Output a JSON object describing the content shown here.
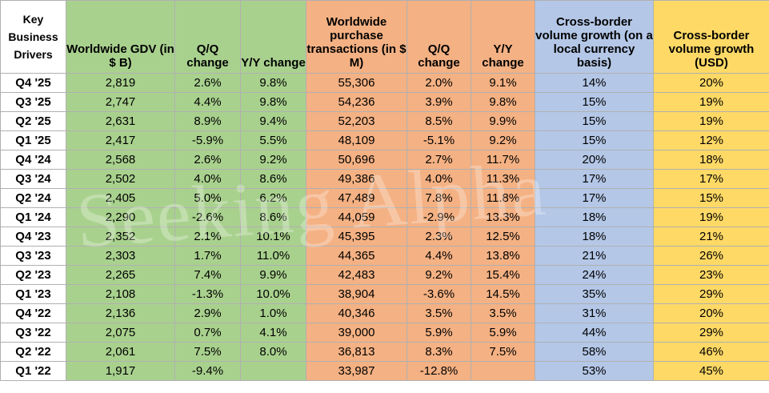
{
  "headers": {
    "key": "Key Business Drivers",
    "gdv": "Worldwide GDV (in $ B)",
    "gdv_qq": "Q/Q change",
    "gdv_yy": "Y/Y change",
    "tx": "Worldwide purchase transactions (in $ M)",
    "tx_qq": "Q/Q change",
    "tx_yy": "Y/Y change",
    "cb_local": "Cross-border volume growth (on a local currency basis)",
    "cb_usd": "Cross-border volume growth (USD)"
  },
  "rows": [
    {
      "q": "Q4 '25",
      "gdv": "2,819",
      "gdv_qq": "2.6%",
      "gdv_yy": "9.8%",
      "tx": "55,306",
      "tx_qq": "2.0%",
      "tx_yy": "9.1%",
      "cb_local": "14%",
      "cb_usd": "20%"
    },
    {
      "q": "Q3 '25",
      "gdv": "2,747",
      "gdv_qq": "4.4%",
      "gdv_yy": "9.8%",
      "tx": "54,236",
      "tx_qq": "3.9%",
      "tx_yy": "9.8%",
      "cb_local": "15%",
      "cb_usd": "19%"
    },
    {
      "q": "Q2 '25",
      "gdv": "2,631",
      "gdv_qq": "8.9%",
      "gdv_yy": "9.4%",
      "tx": "52,203",
      "tx_qq": "8.5%",
      "tx_yy": "9.9%",
      "cb_local": "15%",
      "cb_usd": "19%"
    },
    {
      "q": "Q1 '25",
      "gdv": "2,417",
      "gdv_qq": "-5.9%",
      "gdv_yy": "5.5%",
      "tx": "48,109",
      "tx_qq": "-5.1%",
      "tx_yy": "9.2%",
      "cb_local": "15%",
      "cb_usd": "12%"
    },
    {
      "q": "Q4 '24",
      "gdv": "2,568",
      "gdv_qq": "2.6%",
      "gdv_yy": "9.2%",
      "tx": "50,696",
      "tx_qq": "2.7%",
      "tx_yy": "11.7%",
      "cb_local": "20%",
      "cb_usd": "18%"
    },
    {
      "q": "Q3 '24",
      "gdv": "2,502",
      "gdv_qq": "4.0%",
      "gdv_yy": "8.6%",
      "tx": "49,386",
      "tx_qq": "4.0%",
      "tx_yy": "11.3%",
      "cb_local": "17%",
      "cb_usd": "17%"
    },
    {
      "q": "Q2 '24",
      "gdv": "2,405",
      "gdv_qq": "5.0%",
      "gdv_yy": "6.2%",
      "tx": "47,489",
      "tx_qq": "7.8%",
      "tx_yy": "11.8%",
      "cb_local": "17%",
      "cb_usd": "15%"
    },
    {
      "q": "Q1 '24",
      "gdv": "2,290",
      "gdv_qq": "-2.6%",
      "gdv_yy": "8.6%",
      "tx": "44,059",
      "tx_qq": "-2.9%",
      "tx_yy": "13.3%",
      "cb_local": "18%",
      "cb_usd": "19%"
    },
    {
      "q": "Q4 '23",
      "gdv": "2,352",
      "gdv_qq": "2.1%",
      "gdv_yy": "10.1%",
      "tx": "45,395",
      "tx_qq": "2.3%",
      "tx_yy": "12.5%",
      "cb_local": "18%",
      "cb_usd": "21%"
    },
    {
      "q": "Q3 '23",
      "gdv": "2,303",
      "gdv_qq": "1.7%",
      "gdv_yy": "11.0%",
      "tx": "44,365",
      "tx_qq": "4.4%",
      "tx_yy": "13.8%",
      "cb_local": "21%",
      "cb_usd": "26%"
    },
    {
      "q": "Q2 '23",
      "gdv": "2,265",
      "gdv_qq": "7.4%",
      "gdv_yy": "9.9%",
      "tx": "42,483",
      "tx_qq": "9.2%",
      "tx_yy": "15.4%",
      "cb_local": "24%",
      "cb_usd": "23%"
    },
    {
      "q": "Q1 '23",
      "gdv": "2,108",
      "gdv_qq": "-1.3%",
      "gdv_yy": "10.0%",
      "tx": "38,904",
      "tx_qq": "-3.6%",
      "tx_yy": "14.5%",
      "cb_local": "35%",
      "cb_usd": "29%"
    },
    {
      "q": "Q4 '22",
      "gdv": "2,136",
      "gdv_qq": "2.9%",
      "gdv_yy": "1.0%",
      "tx": "40,346",
      "tx_qq": "3.5%",
      "tx_yy": "3.5%",
      "cb_local": "31%",
      "cb_usd": "20%"
    },
    {
      "q": "Q3 '22",
      "gdv": "2,075",
      "gdv_qq": "0.7%",
      "gdv_yy": "4.1%",
      "tx": "39,000",
      "tx_qq": "5.9%",
      "tx_yy": "5.9%",
      "cb_local": "44%",
      "cb_usd": "29%"
    },
    {
      "q": "Q2 '22",
      "gdv": "2,061",
      "gdv_qq": "7.5%",
      "gdv_yy": "8.0%",
      "tx": "36,813",
      "tx_qq": "8.3%",
      "tx_yy": "7.5%",
      "cb_local": "58%",
      "cb_usd": "46%"
    },
    {
      "q": "Q1 '22",
      "gdv": "1,917",
      "gdv_qq": "-9.4%",
      "gdv_yy": "",
      "tx": "33,987",
      "tx_qq": "-12.8%",
      "tx_yy": "",
      "cb_local": "53%",
      "cb_usd": "45%"
    }
  ],
  "watermark": "Seeking Alpha",
  "colors": {
    "green": "#a9d18e",
    "orange": "#f4b183",
    "blue": "#b4c7e7",
    "yellow": "#ffd966"
  }
}
